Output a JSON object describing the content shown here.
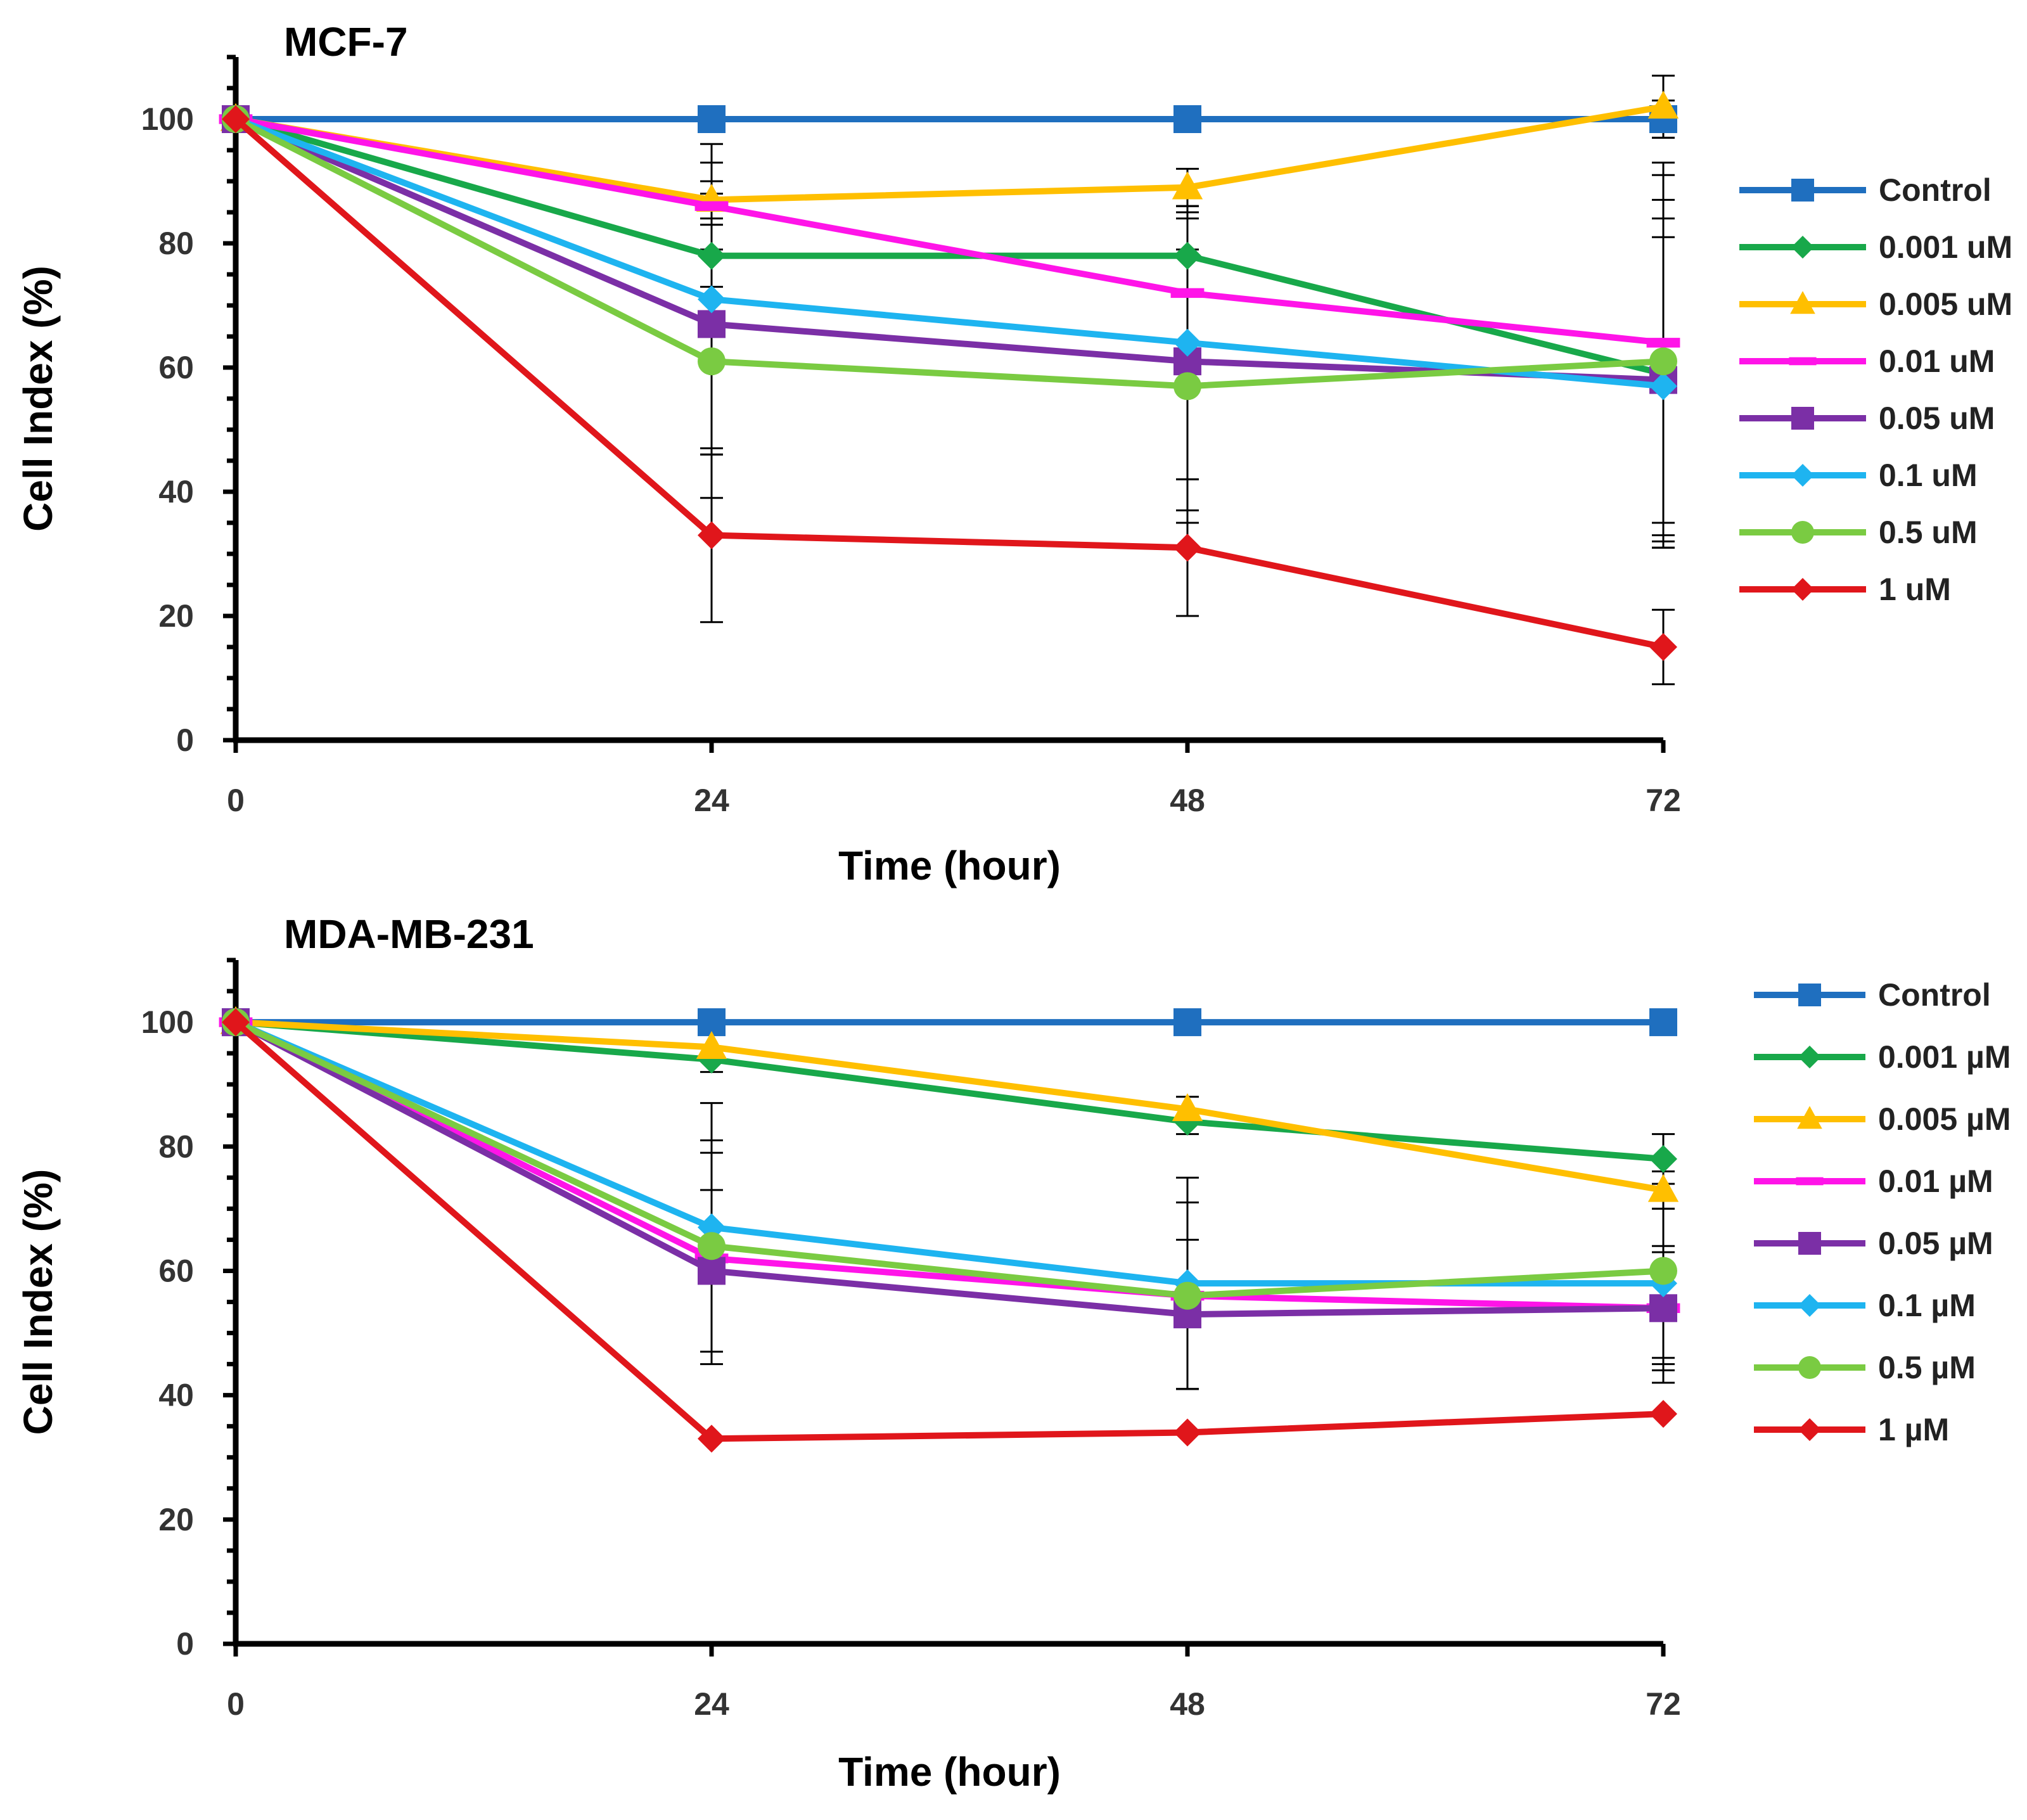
{
  "chart_data": [
    {
      "type": "line",
      "title": "MCF-7",
      "xlabel": "Time (hour)",
      "ylabel": "Cell Index (%)",
      "x": [
        0,
        24,
        48,
        72
      ],
      "xlim": [
        0,
        72
      ],
      "ylim": [
        0,
        110
      ],
      "yticks": [
        0,
        20,
        40,
        60,
        80,
        100
      ],
      "xticks": [
        0,
        24,
        48,
        72
      ],
      "grid": false,
      "legend_position": "right",
      "series": [
        {
          "name": "Control",
          "color": "#1F6FBF",
          "marker": "square",
          "values": [
            100,
            100,
            100,
            100
          ],
          "errors": [
            0,
            0,
            0,
            3
          ]
        },
        {
          "name": "0.001 uM",
          "color": "#18A84A",
          "marker": "diamond",
          "values": [
            100,
            78,
            78,
            59
          ],
          "errors": [
            0,
            5,
            6,
            28
          ]
        },
        {
          "name": "0.005 uM",
          "color": "#FFBF00",
          "marker": "triangle",
          "values": [
            100,
            87,
            89,
            102
          ],
          "errors": [
            0,
            3,
            3,
            5
          ]
        },
        {
          "name": "0.01 uM",
          "color": "#FF14E8",
          "marker": "dash",
          "values": [
            100,
            86,
            72,
            64
          ],
          "errors": [
            0,
            7,
            14,
            29
          ]
        },
        {
          "name": "0.05 uM",
          "color": "#7B2FA6",
          "marker": "square",
          "values": [
            100,
            67,
            61,
            58
          ],
          "errors": [
            0,
            21,
            24,
            26
          ]
        },
        {
          "name": "0.1 uM",
          "color": "#1EB4F0",
          "marker": "diamond",
          "values": [
            100,
            71,
            64,
            57
          ],
          "errors": [
            0,
            25,
            22,
            24
          ]
        },
        {
          "name": "0.5 uM",
          "color": "#7ACB42",
          "marker": "circle",
          "values": [
            100,
            61,
            57,
            61
          ],
          "errors": [
            0,
            22,
            22,
            30
          ]
        },
        {
          "name": "1 uM",
          "color": "#E0161B",
          "marker": "diamond",
          "values": [
            100,
            33,
            31,
            15
          ],
          "errors": [
            0,
            14,
            11,
            6
          ]
        }
      ]
    },
    {
      "type": "line",
      "title": "MDA-MB-231",
      "xlabel": "Time (hour)",
      "ylabel": "Cell Index (%)",
      "x": [
        0,
        24,
        48,
        72
      ],
      "xlim": [
        0,
        72
      ],
      "ylim": [
        0,
        110
      ],
      "yticks": [
        0,
        20,
        40,
        60,
        80,
        100
      ],
      "xticks": [
        0,
        24,
        48,
        72
      ],
      "grid": false,
      "legend_position": "right",
      "series": [
        {
          "name": "Control",
          "color": "#1F6FBF",
          "marker": "square",
          "values": [
            100,
            100,
            100,
            100
          ],
          "errors": [
            0,
            0,
            0,
            0
          ]
        },
        {
          "name": "0.001 µM",
          "color": "#18A84A",
          "marker": "diamond",
          "values": [
            100,
            94,
            84,
            78
          ],
          "errors": [
            0,
            2,
            2,
            4
          ]
        },
        {
          "name": "0.005 µM",
          "color": "#FFBF00",
          "marker": "triangle",
          "values": [
            100,
            96,
            86,
            73
          ],
          "errors": [
            0,
            2,
            2,
            3
          ]
        },
        {
          "name": "0.01 µM",
          "color": "#FF14E8",
          "marker": "dash",
          "values": [
            100,
            62,
            56,
            54
          ],
          "errors": [
            0,
            17,
            15,
            10
          ]
        },
        {
          "name": "0.05 µM",
          "color": "#7B2FA6",
          "marker": "square",
          "values": [
            100,
            60,
            53,
            54
          ],
          "errors": [
            0,
            13,
            12,
            9
          ]
        },
        {
          "name": "0.1 µM",
          "color": "#1EB4F0",
          "marker": "diamond",
          "values": [
            100,
            67,
            58,
            58
          ],
          "errors": [
            0,
            20,
            17,
            12
          ]
        },
        {
          "name": "0.5 µM",
          "color": "#7ACB42",
          "marker": "circle",
          "values": [
            100,
            64,
            56,
            60
          ],
          "errors": [
            0,
            17,
            15,
            18
          ]
        },
        {
          "name": "1 µM",
          "color": "#E0161B",
          "marker": "diamond",
          "values": [
            100,
            33,
            34,
            37
          ],
          "errors": [
            0,
            0,
            0,
            0
          ]
        }
      ]
    }
  ]
}
